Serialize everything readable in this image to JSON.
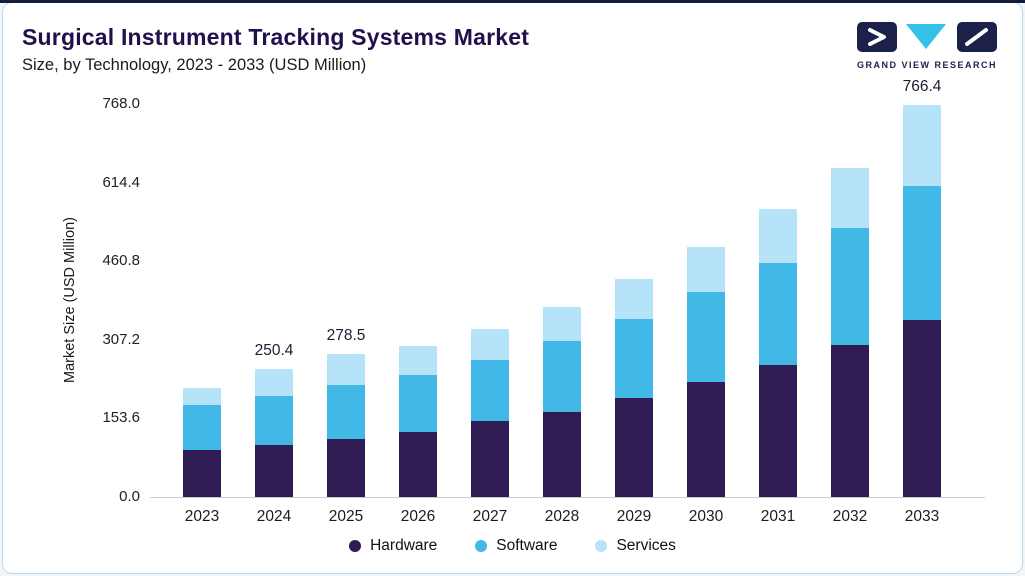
{
  "header": {
    "title": "Surgical Instrument Tracking Systems Market",
    "subtitle": "Size, by Technology, 2023 - 2033 (USD Million)",
    "brand": {
      "wordmark": "GRAND VIEW RESEARCH"
    }
  },
  "colors": {
    "accent_line": "#141a44",
    "card_border": "#bcd9ea",
    "title_text": "#22104d"
  },
  "chart_data": {
    "type": "bar",
    "stacked": true,
    "title": "Surgical Instrument Tracking Systems Market Size, by Technology, 2023 - 2033 (USD Million)",
    "xlabel": "",
    "ylabel": "Market Size (USD Million)",
    "ylim": [
      0,
      768
    ],
    "grid": false,
    "legend_position": "bottom",
    "categories": [
      "2023",
      "2024",
      "2025",
      "2026",
      "2027",
      "2028",
      "2029",
      "2030",
      "2031",
      "2032",
      "2033"
    ],
    "series": [
      {
        "name": "Hardware",
        "color": "#2f1c52",
        "values": [
          92,
          102,
          113,
          127,
          148,
          167,
          193,
          224,
          258,
          298,
          345
        ]
      },
      {
        "name": "Software",
        "color": "#41b8e6",
        "values": [
          88,
          96,
          106,
          112,
          120,
          138,
          155,
          176,
          200,
          228,
          262
        ]
      },
      {
        "name": "Services",
        "color": "#b6e3f8",
        "values": [
          33,
          52.4,
          59.5,
          57,
          61,
          67,
          78,
          88,
          104,
          116,
          159.4
        ]
      }
    ],
    "totals": [
      213,
      250.4,
      278.5,
      296,
      329,
      372,
      426,
      488,
      562,
      642,
      766.4
    ],
    "total_labels": {
      "2024": "250.4",
      "2025": "278.5",
      "2033": "766.4"
    },
    "yticks": [
      {
        "value": 0,
        "label": "0.0"
      },
      {
        "value": 153.6,
        "label": "153.6"
      },
      {
        "value": 307.2,
        "label": "307.2"
      },
      {
        "value": 460.8,
        "label": "460.8"
      },
      {
        "value": 614.4,
        "label": "614.4"
      },
      {
        "value": 768.0,
        "label": "768.0"
      }
    ]
  }
}
